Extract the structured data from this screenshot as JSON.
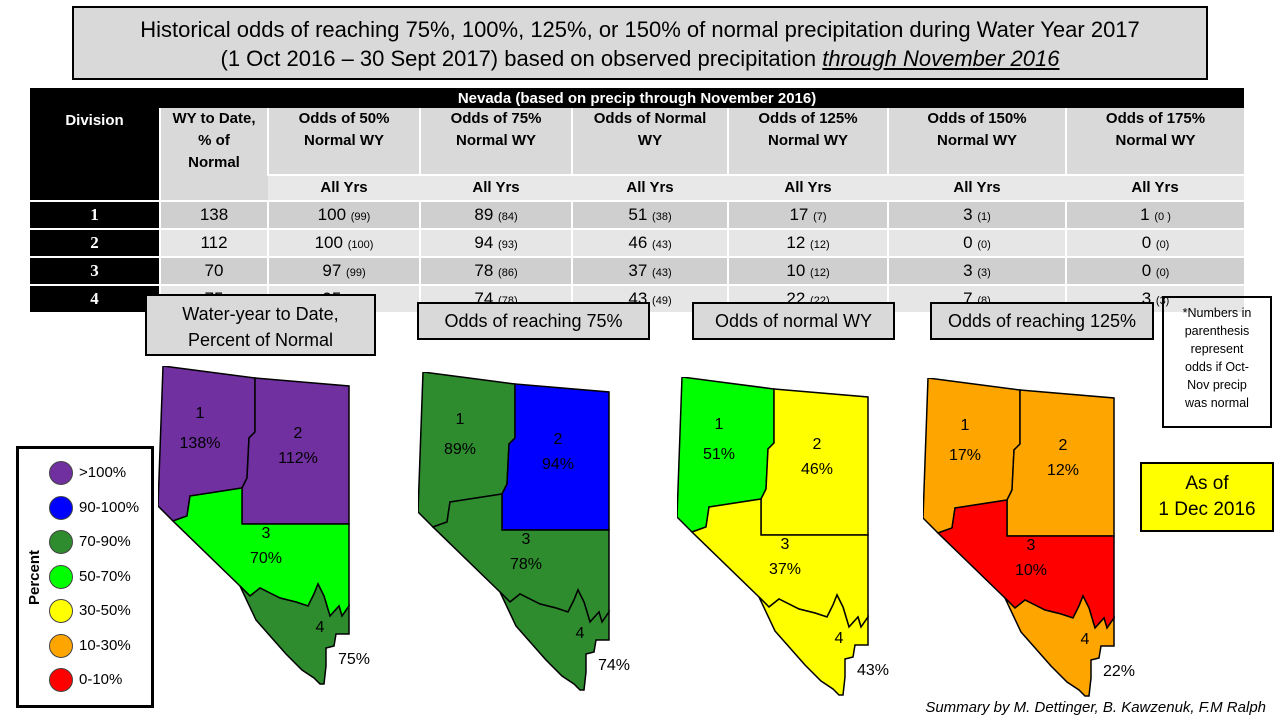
{
  "title": {
    "line1": "Historical odds of reaching 75%, 100%, 125%, or 150% of normal precipitation during Water Year 2017",
    "line2_prefix": "(1 Oct 2016 – 30 Sept 2017) based on observed precipitation ",
    "line2_emph": "through November 2016"
  },
  "table": {
    "caption": "Nevada (based on precip through November 2016)",
    "division_header": "Division",
    "wy_header": [
      "WY to Date,",
      "% of",
      "Normal"
    ],
    "odds_headers": [
      [
        "Odds of 50%",
        "Normal WY"
      ],
      [
        "Odds of 75%",
        "Normal WY"
      ],
      [
        "Odds of Normal",
        "WY"
      ],
      [
        "Odds of 125%",
        "Normal WY"
      ],
      [
        "Odds of 150%",
        "Normal WY"
      ],
      [
        "Odds of 175%",
        "Normal WY"
      ]
    ],
    "sub_label": "All Yrs",
    "rows": [
      {
        "division": "1",
        "wy": "138",
        "cells": [
          [
            "100",
            "(99)"
          ],
          [
            "89",
            "(84)"
          ],
          [
            "51",
            "(38)"
          ],
          [
            "17",
            "(7)"
          ],
          [
            "3",
            "(1)"
          ],
          [
            "1",
            "(0 )"
          ]
        ]
      },
      {
        "division": "2",
        "wy": "112",
        "cells": [
          [
            "100",
            "(100)"
          ],
          [
            "94",
            "(93)"
          ],
          [
            "46",
            "(43)"
          ],
          [
            "12",
            "(12)"
          ],
          [
            "0",
            "(0)"
          ],
          [
            "0",
            "(0)"
          ]
        ]
      },
      {
        "division": "3",
        "wy": "70",
        "cells": [
          [
            "97",
            "(99)"
          ],
          [
            "78",
            "(86)"
          ],
          [
            "37",
            "(43)"
          ],
          [
            "10",
            "(12)"
          ],
          [
            "3",
            "(3)"
          ],
          [
            "0",
            "(0)"
          ]
        ]
      },
      {
        "division": "4",
        "wy": "75",
        "cells": [
          [
            "95",
            "(98)"
          ],
          [
            "74",
            "(78)"
          ],
          [
            "43",
            "(49)"
          ],
          [
            "22",
            "(22)"
          ],
          [
            "7",
            "(8)"
          ],
          [
            "3",
            "(3)"
          ]
        ]
      }
    ]
  },
  "maps": [
    {
      "label": [
        "Water-year to Date,",
        "Percent of Normal"
      ],
      "divisions": [
        {
          "num": "1",
          "value": "138%",
          "color": "#7030a0"
        },
        {
          "num": "2",
          "value": "112%",
          "color": "#7030a0"
        },
        {
          "num": "3",
          "value": "70%",
          "color": "#00ff00"
        },
        {
          "num": "4",
          "value": "75%",
          "color": "#2e8b2e"
        }
      ]
    },
    {
      "label": [
        "Odds of reaching 75%"
      ],
      "divisions": [
        {
          "num": "1",
          "value": "89%",
          "color": "#2e8b2e"
        },
        {
          "num": "2",
          "value": "94%",
          "color": "#0000ff"
        },
        {
          "num": "3",
          "value": "78%",
          "color": "#2e8b2e"
        },
        {
          "num": "4",
          "value": "74%",
          "color": "#2e8b2e"
        }
      ]
    },
    {
      "label": [
        "Odds of normal WY"
      ],
      "divisions": [
        {
          "num": "1",
          "value": "51%",
          "color": "#00ff00"
        },
        {
          "num": "2",
          "value": "46%",
          "color": "#ffff00"
        },
        {
          "num": "3",
          "value": "37%",
          "color": "#ffff00"
        },
        {
          "num": "4",
          "value": "43%",
          "color": "#ffff00"
        }
      ]
    },
    {
      "label": [
        "Odds of reaching 125%"
      ],
      "divisions": [
        {
          "num": "1",
          "value": "17%",
          "color": "#ffa500"
        },
        {
          "num": "2",
          "value": "12%",
          "color": "#ffa500"
        },
        {
          "num": "3",
          "value": "10%",
          "color": "#ff0000"
        },
        {
          "num": "4",
          "value": "22%",
          "color": "#ffa500"
        }
      ]
    }
  ],
  "note": [
    "*Numbers in",
    "parenthesis",
    "represent",
    "odds if Oct-",
    "Nov precip",
    "was normal"
  ],
  "as_of": [
    "As of",
    "1 Dec 2016"
  ],
  "legend": {
    "title": "Percent",
    "items": [
      {
        "label": ">100%",
        "color": "#7030a0"
      },
      {
        "label": "90-100%",
        "color": "#0000ff"
      },
      {
        "label": "70-90%",
        "color": "#2e8b2e"
      },
      {
        "label": "50-70%",
        "color": "#00ff00"
      },
      {
        "label": "30-50%",
        "color": "#ffff00"
      },
      {
        "label": "10-30%",
        "color": "#ffa500"
      },
      {
        "label": "0-10%",
        "color": "#ff0000"
      }
    ]
  },
  "credit": "Summary by M. Dettinger, B. Kawzenuk, F.M Ralph"
}
